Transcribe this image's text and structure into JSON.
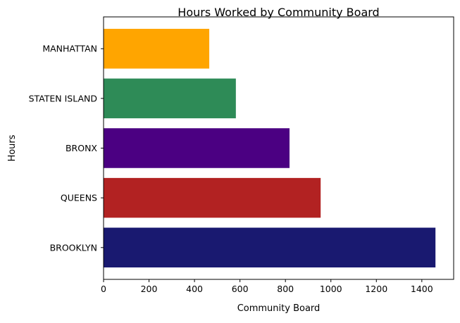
{
  "chart_data": {
    "type": "bar",
    "orientation": "horizontal",
    "title": "Hours Worked by Community Board",
    "xlabel": "Community Board",
    "ylabel": "Hours",
    "categories": [
      "BROOKLYN",
      "QUEENS",
      "BRONX",
      "STATEN ISLAND",
      "MANHATTAN"
    ],
    "values": [
      1460,
      955,
      818,
      582,
      465
    ],
    "colors": [
      "#191970",
      "#b22222",
      "#4b0082",
      "#2e8b57",
      "#ffa500"
    ],
    "xlim": [
      0,
      1540
    ],
    "xticks": [
      0,
      200,
      400,
      600,
      800,
      1000,
      1200,
      1400
    ],
    "grid": false,
    "legend": "none"
  }
}
